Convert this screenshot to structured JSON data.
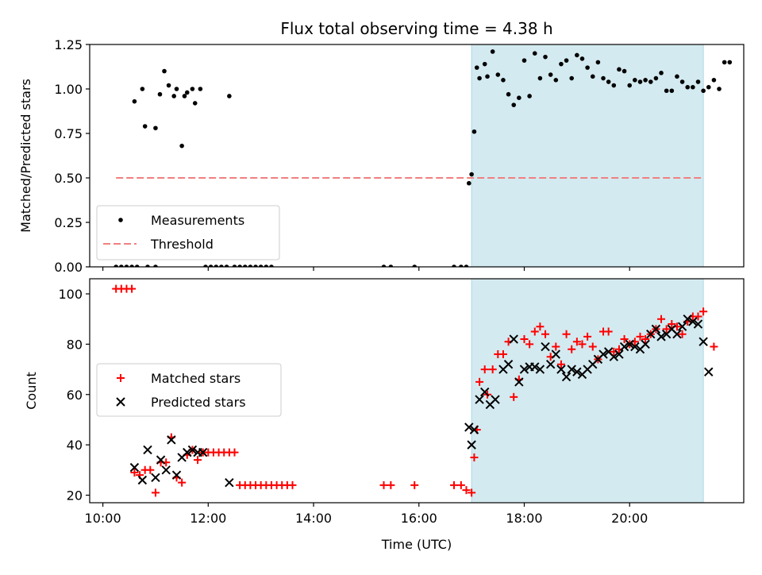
{
  "chart_data": [
    {
      "type": "scatter",
      "panel": "top",
      "title": "Flux total observing time = 4.38 h",
      "ylabel": "Matched/Predicted stars",
      "xlabel": "",
      "x_unit": "hours (UTC)",
      "xlim": [
        "09:45",
        "22:10"
      ],
      "ylim": [
        0,
        1.25
      ],
      "yticks": [
        "0.00",
        "0.25",
        "0.50",
        "0.75",
        "1.00",
        "1.25"
      ],
      "grid": false,
      "legend": "lower-left",
      "highlight_span": {
        "start": "17:00",
        "end": "21:24",
        "color": "#d3eaf0"
      },
      "threshold": {
        "name": "Threshold",
        "value": 0.5,
        "x_start": "10:15",
        "x_end": "21:24",
        "color": "#f08080"
      },
      "series": [
        {
          "name": "Measurements",
          "color": "#000000",
          "marker": "dot",
          "points": [
            [
              "10:15",
              0
            ],
            [
              "10:21",
              0
            ],
            [
              "10:27",
              0
            ],
            [
              "10:33",
              0
            ],
            [
              "10:39",
              0
            ],
            [
              "10:51",
              0
            ],
            [
              "11:00",
              0
            ],
            [
              "10:36",
              0.93
            ],
            [
              "10:45",
              1.0
            ],
            [
              "10:48",
              0.79
            ],
            [
              "11:00",
              0.78
            ],
            [
              "11:05",
              0.97
            ],
            [
              "11:10",
              1.1
            ],
            [
              "11:15",
              1.02
            ],
            [
              "11:21",
              0.96
            ],
            [
              "11:24",
              1.0
            ],
            [
              "11:30",
              0.68
            ],
            [
              "11:33",
              0.96
            ],
            [
              "11:36",
              0.98
            ],
            [
              "11:42",
              1.0
            ],
            [
              "11:45",
              0.92
            ],
            [
              "11:51",
              1.0
            ],
            [
              "11:57",
              0
            ],
            [
              "12:03",
              0
            ],
            [
              "12:09",
              0
            ],
            [
              "12:15",
              0
            ],
            [
              "12:21",
              0
            ],
            [
              "12:30",
              0
            ],
            [
              "12:36",
              0
            ],
            [
              "12:42",
              0
            ],
            [
              "12:48",
              0
            ],
            [
              "12:54",
              0
            ],
            [
              "13:00",
              0
            ],
            [
              "13:06",
              0
            ],
            [
              "13:12",
              0
            ],
            [
              "12:24",
              0.96
            ],
            [
              "15:20",
              0
            ],
            [
              "15:28",
              0
            ],
            [
              "15:55",
              0
            ],
            [
              "16:40",
              0
            ],
            [
              "16:48",
              0
            ],
            [
              "16:54",
              0
            ],
            [
              "16:57",
              0.47
            ],
            [
              "17:00",
              0.52
            ],
            [
              "17:03",
              0.76
            ],
            [
              "17:06",
              1.12
            ],
            [
              "17:09",
              1.06
            ],
            [
              "17:15",
              1.14
            ],
            [
              "17:18",
              1.07
            ],
            [
              "17:24",
              1.21
            ],
            [
              "17:30",
              1.08
            ],
            [
              "17:36",
              1.05
            ],
            [
              "17:42",
              0.97
            ],
            [
              "17:48",
              0.91
            ],
            [
              "17:54",
              0.95
            ],
            [
              "18:00",
              1.16
            ],
            [
              "18:06",
              0.96
            ],
            [
              "18:12",
              1.2
            ],
            [
              "18:18",
              1.06
            ],
            [
              "18:24",
              1.18
            ],
            [
              "18:30",
              1.08
            ],
            [
              "18:36",
              1.05
            ],
            [
              "18:42",
              1.14
            ],
            [
              "18:48",
              1.16
            ],
            [
              "18:54",
              1.06
            ],
            [
              "19:00",
              1.19
            ],
            [
              "19:06",
              1.17
            ],
            [
              "19:12",
              1.12
            ],
            [
              "19:18",
              1.07
            ],
            [
              "19:24",
              1.15
            ],
            [
              "19:30",
              1.06
            ],
            [
              "19:36",
              1.04
            ],
            [
              "19:42",
              1.02
            ],
            [
              "19:48",
              1.11
            ],
            [
              "19:54",
              1.1
            ],
            [
              "20:00",
              1.02
            ],
            [
              "20:06",
              1.05
            ],
            [
              "20:12",
              1.04
            ],
            [
              "20:18",
              1.05
            ],
            [
              "20:24",
              1.04
            ],
            [
              "20:30",
              1.06
            ],
            [
              "20:36",
              1.09
            ],
            [
              "20:42",
              0.99
            ],
            [
              "20:48",
              0.99
            ],
            [
              "20:54",
              1.07
            ],
            [
              "21:00",
              1.04
            ],
            [
              "21:06",
              1.01
            ],
            [
              "21:12",
              1.01
            ],
            [
              "21:18",
              1.04
            ],
            [
              "21:24",
              0.99
            ],
            [
              "21:30",
              1.01
            ],
            [
              "21:36",
              1.05
            ],
            [
              "21:42",
              1.0
            ],
            [
              "21:48",
              1.15
            ],
            [
              "21:54",
              1.15
            ]
          ]
        }
      ]
    },
    {
      "type": "scatter",
      "panel": "bottom",
      "title": "",
      "ylabel": "Count",
      "xlabel": "Time (UTC)",
      "xlim": [
        "09:45",
        "22:10"
      ],
      "ylim": [
        17,
        106
      ],
      "xticks": [
        "10:00",
        "12:00",
        "14:00",
        "16:00",
        "18:00",
        "20:00"
      ],
      "yticks": [
        "20",
        "40",
        "60",
        "80",
        "100"
      ],
      "grid": false,
      "legend": "center-left",
      "highlight_span": {
        "start": "17:00",
        "end": "21:24",
        "color": "#d3eaf0"
      },
      "series": [
        {
          "name": "Matched stars",
          "color": "#ff0000",
          "marker": "plus",
          "points": [
            [
              "10:15",
              102
            ],
            [
              "10:21",
              102
            ],
            [
              "10:27",
              102
            ],
            [
              "10:33",
              102
            ],
            [
              "10:36",
              29
            ],
            [
              "10:42",
              28
            ],
            [
              "10:48",
              30
            ],
            [
              "10:54",
              30
            ],
            [
              "11:00",
              21
            ],
            [
              "11:06",
              33
            ],
            [
              "11:12",
              33
            ],
            [
              "11:18",
              43
            ],
            [
              "11:24",
              27
            ],
            [
              "11:30",
              25
            ],
            [
              "11:36",
              36
            ],
            [
              "11:42",
              38
            ],
            [
              "11:48",
              34
            ],
            [
              "11:54",
              37
            ],
            [
              "12:00",
              37
            ],
            [
              "12:06",
              37
            ],
            [
              "12:12",
              37
            ],
            [
              "12:18",
              37
            ],
            [
              "12:24",
              37
            ],
            [
              "12:30",
              37
            ],
            [
              "12:36",
              24
            ],
            [
              "12:42",
              24
            ],
            [
              "12:48",
              24
            ],
            [
              "12:54",
              24
            ],
            [
              "13:00",
              24
            ],
            [
              "13:06",
              24
            ],
            [
              "13:12",
              24
            ],
            [
              "13:18",
              24
            ],
            [
              "13:24",
              24
            ],
            [
              "13:30",
              24
            ],
            [
              "13:36",
              24
            ],
            [
              "15:20",
              24
            ],
            [
              "15:28",
              24
            ],
            [
              "15:55",
              24
            ],
            [
              "16:40",
              24
            ],
            [
              "16:48",
              24
            ],
            [
              "16:54",
              22
            ],
            [
              "17:00",
              21
            ],
            [
              "17:03",
              35
            ],
            [
              "17:06",
              46
            ],
            [
              "17:09",
              65
            ],
            [
              "17:15",
              70
            ],
            [
              "17:18",
              60
            ],
            [
              "17:24",
              70
            ],
            [
              "17:30",
              76
            ],
            [
              "17:36",
              76
            ],
            [
              "17:42",
              81
            ],
            [
              "17:48",
              59
            ],
            [
              "17:54",
              66
            ],
            [
              "18:00",
              82
            ],
            [
              "18:06",
              80
            ],
            [
              "18:12",
              85
            ],
            [
              "18:18",
              87
            ],
            [
              "18:24",
              84
            ],
            [
              "18:30",
              75
            ],
            [
              "18:36",
              79
            ],
            [
              "18:42",
              72
            ],
            [
              "18:48",
              84
            ],
            [
              "18:54",
              78
            ],
            [
              "19:00",
              81
            ],
            [
              "19:06",
              80
            ],
            [
              "19:12",
              83
            ],
            [
              "19:18",
              79
            ],
            [
              "19:24",
              74
            ],
            [
              "19:30",
              85
            ],
            [
              "19:36",
              85
            ],
            [
              "19:42",
              77
            ],
            [
              "19:48",
              78
            ],
            [
              "19:54",
              82
            ],
            [
              "20:00",
              80
            ],
            [
              "20:06",
              81
            ],
            [
              "20:12",
              83
            ],
            [
              "20:18",
              82
            ],
            [
              "20:24",
              84
            ],
            [
              "20:30",
              86
            ],
            [
              "20:36",
              90
            ],
            [
              "20:42",
              86
            ],
            [
              "20:48",
              88
            ],
            [
              "20:54",
              87
            ],
            [
              "21:00",
              84
            ],
            [
              "21:06",
              89
            ],
            [
              "21:12",
              91
            ],
            [
              "21:18",
              91
            ],
            [
              "21:24",
              93
            ],
            [
              "21:36",
              79
            ]
          ]
        },
        {
          "name": "Predicted stars",
          "color": "#000000",
          "marker": "x",
          "points": [
            [
              "10:36",
              31
            ],
            [
              "10:45",
              26
            ],
            [
              "10:51",
              38
            ],
            [
              "11:00",
              27
            ],
            [
              "11:06",
              34
            ],
            [
              "11:12",
              30
            ],
            [
              "11:18",
              42
            ],
            [
              "11:24",
              28
            ],
            [
              "11:30",
              35
            ],
            [
              "11:36",
              37
            ],
            [
              "11:42",
              38
            ],
            [
              "11:48",
              37
            ],
            [
              "11:54",
              37
            ],
            [
              "12:24",
              25
            ],
            [
              "16:57",
              47
            ],
            [
              "17:00",
              40
            ],
            [
              "17:03",
              46
            ],
            [
              "17:09",
              58
            ],
            [
              "17:15",
              61
            ],
            [
              "17:21",
              56
            ],
            [
              "17:27",
              58
            ],
            [
              "17:36",
              70
            ],
            [
              "17:42",
              72
            ],
            [
              "17:48",
              82
            ],
            [
              "17:54",
              65
            ],
            [
              "18:00",
              70
            ],
            [
              "18:06",
              71
            ],
            [
              "18:12",
              71
            ],
            [
              "18:18",
              70
            ],
            [
              "18:24",
              79
            ],
            [
              "18:30",
              72
            ],
            [
              "18:36",
              76
            ],
            [
              "18:42",
              70
            ],
            [
              "18:48",
              67
            ],
            [
              "18:54",
              70
            ],
            [
              "19:00",
              69
            ],
            [
              "19:06",
              68
            ],
            [
              "19:12",
              70
            ],
            [
              "19:18",
              72
            ],
            [
              "19:24",
              74
            ],
            [
              "19:30",
              76
            ],
            [
              "19:36",
              77
            ],
            [
              "19:42",
              75
            ],
            [
              "19:48",
              76
            ],
            [
              "19:54",
              79
            ],
            [
              "20:00",
              80
            ],
            [
              "20:06",
              79
            ],
            [
              "20:12",
              78
            ],
            [
              "20:18",
              80
            ],
            [
              "20:24",
              84
            ],
            [
              "20:30",
              86
            ],
            [
              "20:36",
              83
            ],
            [
              "20:42",
              84
            ],
            [
              "20:48",
              86
            ],
            [
              "20:54",
              84
            ],
            [
              "21:00",
              87
            ],
            [
              "21:06",
              90
            ],
            [
              "21:12",
              89
            ],
            [
              "21:18",
              88
            ],
            [
              "21:24",
              81
            ],
            [
              "21:30",
              69
            ]
          ]
        }
      ]
    }
  ]
}
